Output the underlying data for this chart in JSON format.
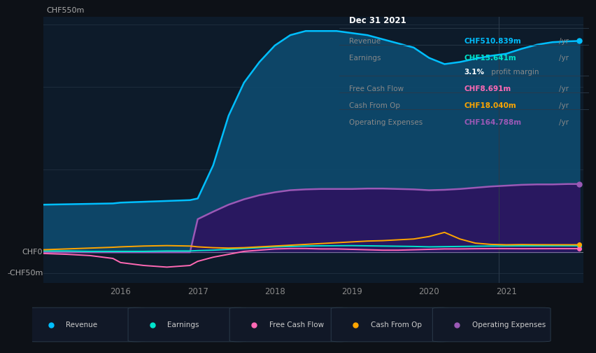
{
  "background_color": "#0d1117",
  "plot_bg_color": "#0d1b2a",
  "ylabel_top": "CHF550m",
  "ylabel_zero": "CHF0",
  "ylabel_neg": "-CHF50m",
  "years": [
    2015.0,
    2015.3,
    2015.6,
    2015.9,
    2016.0,
    2016.3,
    2016.6,
    2016.9,
    2017.0,
    2017.2,
    2017.4,
    2017.6,
    2017.8,
    2018.0,
    2018.2,
    2018.4,
    2018.6,
    2018.8,
    2019.0,
    2019.2,
    2019.4,
    2019.6,
    2019.8,
    2020.0,
    2020.2,
    2020.4,
    2020.6,
    2020.8,
    2021.0,
    2021.2,
    2021.4,
    2021.6,
    2021.8,
    2021.95
  ],
  "revenue": [
    115,
    116,
    117,
    118,
    120,
    122,
    124,
    126,
    130,
    210,
    330,
    410,
    460,
    500,
    525,
    535,
    535,
    535,
    530,
    525,
    515,
    505,
    495,
    470,
    455,
    460,
    468,
    475,
    480,
    492,
    502,
    508,
    510,
    511
  ],
  "operating_expenses": [
    0,
    0,
    0,
    0,
    0,
    0,
    0,
    0,
    80,
    98,
    115,
    128,
    138,
    145,
    150,
    152,
    153,
    153,
    153,
    154,
    154,
    153,
    152,
    150,
    151,
    153,
    156,
    159,
    161,
    163,
    164,
    164,
    165,
    165
  ],
  "earnings": [
    3,
    3,
    2,
    2,
    2,
    2,
    3,
    3,
    4,
    5,
    7,
    9,
    11,
    13,
    14,
    15,
    15.5,
    15.8,
    16,
    15.5,
    15,
    14.5,
    14,
    13,
    13.5,
    14,
    14.5,
    15,
    15.2,
    15.4,
    15.5,
    15.6,
    15.641,
    15.641
  ],
  "free_cash_flow": [
    -3,
    -5,
    -8,
    -15,
    -25,
    -32,
    -36,
    -32,
    -22,
    -12,
    -5,
    2,
    5,
    8,
    9,
    9,
    8,
    8,
    7,
    6,
    5,
    5,
    6,
    7,
    8,
    8,
    8.5,
    8.691,
    8.691,
    8.5,
    8.6,
    8.7,
    8.691,
    8.691
  ],
  "cash_from_op": [
    6,
    8,
    10,
    12,
    13,
    15,
    16,
    15,
    13,
    11,
    10,
    11,
    13,
    15,
    17,
    19,
    21,
    23,
    25,
    27,
    28,
    30,
    32,
    38,
    48,
    32,
    22,
    19,
    18,
    18.5,
    18.2,
    18.1,
    18.04,
    18.04
  ],
  "revenue_color": "#00bfff",
  "earnings_color": "#00e5cc",
  "free_cash_flow_color": "#ff69b4",
  "cash_from_op_color": "#ffa500",
  "operating_expenses_color": "#9b59b6",
  "revenue_fill": "#0d4a6e",
  "operating_expenses_fill": "#2d1460",
  "xlim": [
    2015.0,
    2022.0
  ],
  "ylim": [
    -75,
    570
  ],
  "info_box": {
    "date": "Dec 31 2021",
    "revenue_label": "Revenue",
    "revenue_val": "CHF510.839m",
    "revenue_unit": "/yr",
    "revenue_color": "#00bfff",
    "earnings_label": "Earnings",
    "earnings_val": "CHF15.641m",
    "earnings_unit": "/yr",
    "earnings_color": "#00e5cc",
    "profit_margin": "3.1%",
    "profit_margin_text": " profit margin",
    "fcf_label": "Free Cash Flow",
    "fcf_val": "CHF8.691m",
    "fcf_unit": "/yr",
    "fcf_color": "#ff69b4",
    "cfop_label": "Cash From Op",
    "cfop_val": "CHF18.040m",
    "cfop_unit": "/yr",
    "cfop_color": "#ffa500",
    "opex_label": "Operating Expenses",
    "opex_val": "CHF164.788m",
    "opex_unit": "/yr",
    "opex_color": "#9b59b6"
  },
  "legend_items": [
    {
      "label": "Revenue",
      "color": "#00bfff"
    },
    {
      "label": "Earnings",
      "color": "#00e5cc"
    },
    {
      "label": "Free Cash Flow",
      "color": "#ff69b4"
    },
    {
      "label": "Cash From Op",
      "color": "#ffa500"
    },
    {
      "label": "Operating Expenses",
      "color": "#9b59b6"
    }
  ],
  "xticks": [
    2016,
    2017,
    2018,
    2019,
    2020,
    2021
  ],
  "grid_lines_y": [
    -50,
    0,
    200,
    400,
    550
  ],
  "separator_x": 2020.9
}
